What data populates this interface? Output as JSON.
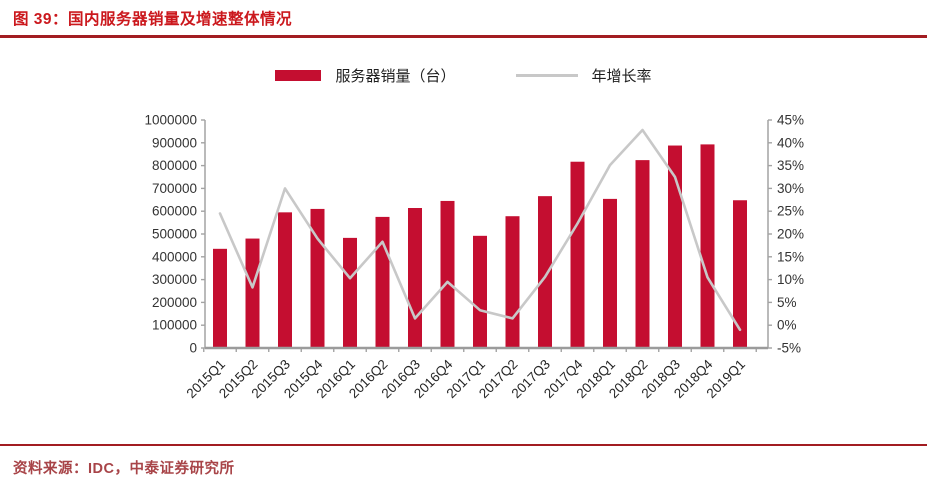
{
  "header": {
    "title": "图 39：国内服务器销量及增速整体情况"
  },
  "footer": {
    "source": "资料来源：IDC，中泰证券研究所"
  },
  "colors": {
    "title_red": "#CB181D",
    "rule_red": "#A21C21",
    "source_red": "#A84448",
    "bar_red": "#C40E30",
    "line_gray": "#C8C8C8",
    "axis_gray": "#A3A3A3",
    "tick_text": "#333333",
    "xlabel_text": "#262626"
  },
  "chart_data": {
    "type": "bar",
    "subtype": "combo-bar-line",
    "title": "",
    "xlabel": "",
    "ylabel_left": "",
    "ylabel_right": "",
    "grid": false,
    "legend_position": "top-center",
    "categories": [
      "2015Q1",
      "2015Q2",
      "2015Q3",
      "2015Q4",
      "2016Q1",
      "2016Q2",
      "2016Q3",
      "2016Q4",
      "2017Q1",
      "2017Q2",
      "2017Q3",
      "2017Q4",
      "2018Q1",
      "2018Q2",
      "2018Q3",
      "2018Q4",
      "2019Q1"
    ],
    "series": [
      {
        "name": "服务器销量（台）",
        "type": "bar",
        "axis": "left",
        "values": [
          435000,
          480000,
          595000,
          610000,
          483000,
          575000,
          614000,
          645000,
          492000,
          578000,
          666000,
          817000,
          654000,
          824000,
          888000,
          893000,
          648000
        ]
      },
      {
        "name": "年增长率",
        "type": "line",
        "axis": "right",
        "values": [
          24.5,
          8.3,
          30.0,
          19.0,
          10.3,
          18.3,
          1.5,
          9.5,
          3.3,
          1.5,
          10.6,
          22.3,
          35.1,
          42.8,
          32.5,
          10.5,
          -1.0
        ]
      }
    ],
    "left_axis": {
      "min": 0,
      "max": 1000000,
      "step": 100000,
      "tick_labels": [
        "1000000",
        "900000",
        "800000",
        "700000",
        "600000",
        "500000",
        "400000",
        "300000",
        "200000",
        "100000",
        "0"
      ]
    },
    "right_axis": {
      "min": -5,
      "max": 45,
      "step": 5,
      "tick_labels": [
        "45%",
        "40%",
        "35%",
        "30%",
        "25%",
        "20%",
        "15%",
        "10%",
        "5%",
        "0%",
        "-5%"
      ]
    }
  }
}
